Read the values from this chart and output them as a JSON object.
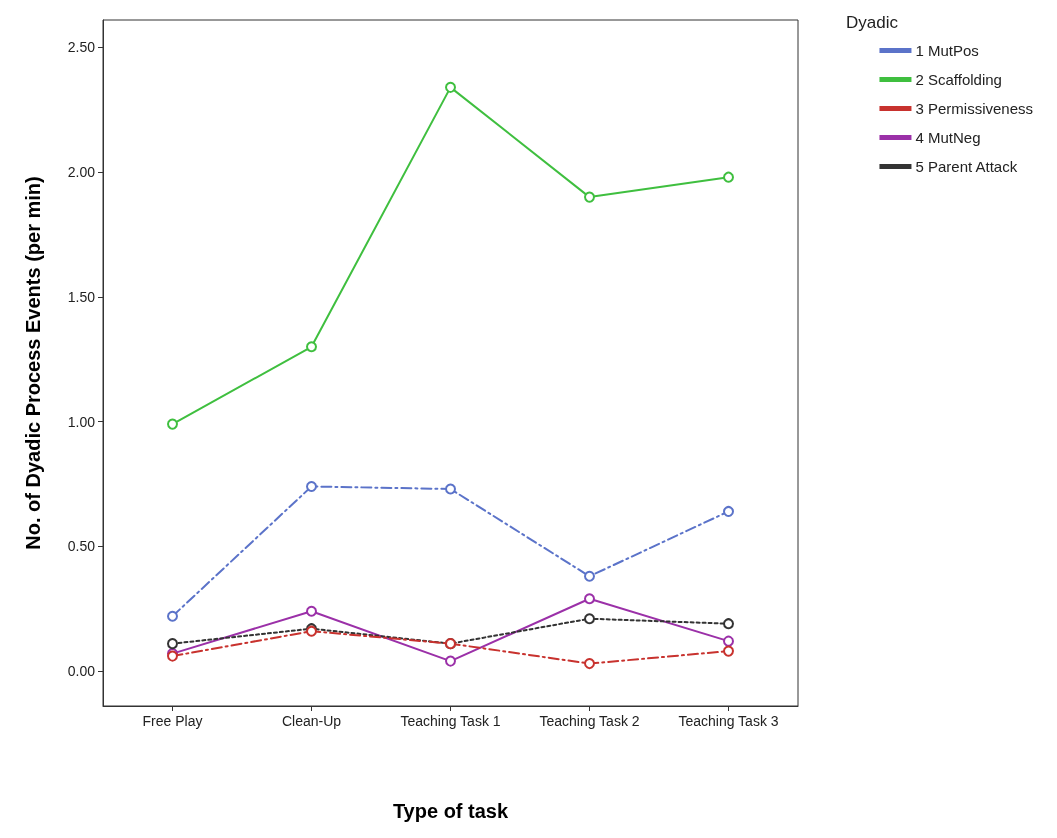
{
  "chart_data": {
    "type": "line",
    "xlabel": "Type of task",
    "ylabel": "No. of Dyadic Process Events (per min)",
    "legend_title": "Dyadic",
    "legend": "right",
    "grid": false,
    "marker": "circle",
    "categories": [
      "Free Play",
      "Clean-Up",
      "Teaching Task 1",
      "Teaching Task 2",
      "Teaching Task 3"
    ],
    "ylim": [
      -0.14,
      2.61
    ],
    "yticks": [
      {
        "value": 0,
        "label": "0.00"
      },
      {
        "value": 0.5,
        "label": "0.50"
      },
      {
        "value": 1,
        "label": "1.00"
      },
      {
        "value": 1.5,
        "label": "1.50"
      },
      {
        "value": 2,
        "label": "2.00"
      },
      {
        "value": 2.5,
        "label": "2.50"
      }
    ],
    "series": [
      {
        "name": "1 MutPos",
        "color": "#5b73c9",
        "line_style": "dashed",
        "values": [
          0.22,
          0.74,
          0.73,
          0.38,
          0.64
        ]
      },
      {
        "name": "2 Scaffolding",
        "color": "#3fbf3f",
        "line_style": "solid",
        "values": [
          0.99,
          1.3,
          2.34,
          1.9,
          1.98
        ]
      },
      {
        "name": "3 Permissiveness",
        "color": "#c8322e",
        "line_style": "dashed",
        "values": [
          0.06,
          0.16,
          0.11,
          0.03,
          0.08
        ]
      },
      {
        "name": "4 MutNeg",
        "color": "#9b30a8",
        "line_style": "solid",
        "values": [
          0.07,
          0.24,
          0.04,
          0.29,
          0.12
        ]
      },
      {
        "name": "5 Parent Attack",
        "color": "#333333",
        "line_style": "dotted",
        "values": [
          0.11,
          0.17,
          0.11,
          0.21,
          0.19
        ]
      }
    ]
  }
}
